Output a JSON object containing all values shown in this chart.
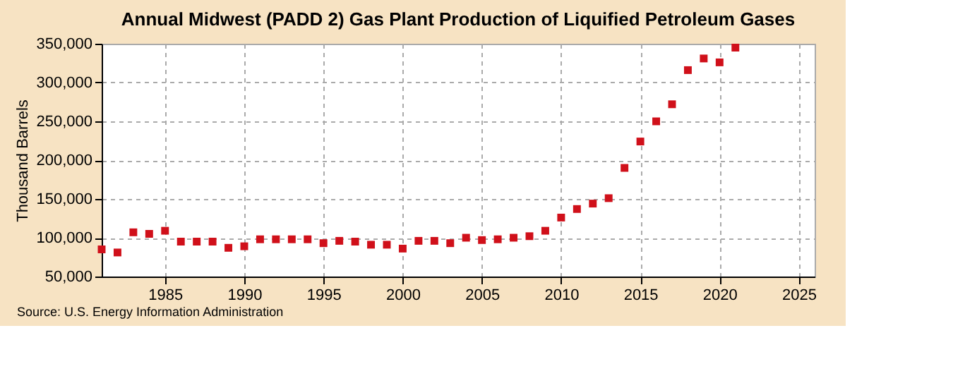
{
  "chart_data": {
    "type": "scatter",
    "title": "Annual Midwest (PADD 2) Gas Plant Production of Liquified Petroleum Gases",
    "ylabel": "Thousand Barrels",
    "x": [
      1981,
      1982,
      1983,
      1984,
      1985,
      1986,
      1987,
      1988,
      1989,
      1990,
      1991,
      1992,
      1993,
      1994,
      1995,
      1996,
      1997,
      1998,
      1999,
      2000,
      2001,
      2002,
      2003,
      2004,
      2005,
      2006,
      2007,
      2008,
      2009,
      2010,
      2011,
      2012,
      2013,
      2014,
      2015,
      2016,
      2017,
      2018,
      2019,
      2020,
      2021
    ],
    "series": [
      {
        "color": "#d0101a",
        "values": [
          85000,
          81000,
          107000,
          105000,
          109000,
          95000,
          95000,
          95000,
          87000,
          89000,
          98000,
          98000,
          98000,
          98000,
          93000,
          96000,
          95000,
          91000,
          91000,
          86000,
          96000,
          96000,
          93000,
          100000,
          97000,
          98000,
          100000,
          102000,
          109000,
          126000,
          137000,
          144000,
          151000,
          190000,
          224000,
          250000,
          272000,
          316000,
          331000,
          326000,
          345000
        ]
      }
    ],
    "xlim": [
      1981,
      2026
    ],
    "xticks": [
      1985,
      1990,
      1995,
      2000,
      2005,
      2010,
      2015,
      2020,
      2025
    ],
    "ylim": [
      50000,
      350000
    ],
    "yticks": [
      {
        "value": 50000,
        "label": "50,000"
      },
      {
        "value": 100000,
        "label": "100,000"
      },
      {
        "value": 150000,
        "label": "150,000"
      },
      {
        "value": 200000,
        "label": "200,000"
      },
      {
        "value": 250000,
        "label": "250,000"
      },
      {
        "value": 300000,
        "label": "300,000"
      },
      {
        "value": 350000,
        "label": "350,000"
      }
    ],
    "grid": true,
    "marker": "square",
    "legend": false,
    "annotations": [
      "Source: U.S. Energy Information Administration"
    ]
  }
}
